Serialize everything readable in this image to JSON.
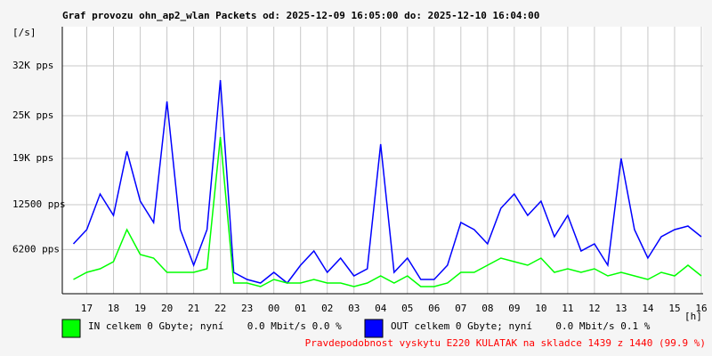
{
  "chart_data": {
    "type": "line",
    "title": "Graf provozu ohn_ap2_wlan Packets od: 2025-12-09 16:05:00 do: 2025-12-10 16:04:00",
    "y_unit": "[/s]",
    "x_unit": "[h]",
    "xlim": [
      0.083,
      24.067
    ],
    "xticks": [
      {
        "value": 1,
        "label": "17"
      },
      {
        "value": 2,
        "label": "18"
      },
      {
        "value": 3,
        "label": "19"
      },
      {
        "value": 4,
        "label": "20"
      },
      {
        "value": 5,
        "label": "21"
      },
      {
        "value": 6,
        "label": "22"
      },
      {
        "value": 7,
        "label": "23"
      },
      {
        "value": 8,
        "label": "00"
      },
      {
        "value": 9,
        "label": "01"
      },
      {
        "value": 10,
        "label": "02"
      },
      {
        "value": 11,
        "label": "03"
      },
      {
        "value": 12,
        "label": "04"
      },
      {
        "value": 13,
        "label": "05"
      },
      {
        "value": 14,
        "label": "06"
      },
      {
        "value": 15,
        "label": "07"
      },
      {
        "value": 16,
        "label": "08"
      },
      {
        "value": 17,
        "label": "09"
      },
      {
        "value": 18,
        "label": "10"
      },
      {
        "value": 19,
        "label": "11"
      },
      {
        "value": 20,
        "label": "12"
      },
      {
        "value": 21,
        "label": "13"
      },
      {
        "value": 22,
        "label": "14"
      },
      {
        "value": 23,
        "label": "15"
      },
      {
        "value": 24,
        "label": "16"
      }
    ],
    "ylim": [
      0,
      37500
    ],
    "yticks": [
      {
        "value": 6200,
        "label": "6200 pps"
      },
      {
        "value": 12500,
        "label": "12500 pps"
      },
      {
        "value": 19000,
        "label": "19K pps"
      },
      {
        "value": 25000,
        "label": "25K pps"
      },
      {
        "value": 32000,
        "label": "32K pps"
      }
    ],
    "grid": true,
    "x": [
      0.5,
      1,
      1.5,
      2,
      2.5,
      3,
      3.5,
      4,
      4.5,
      5,
      5.5,
      6,
      6.5,
      7,
      7.5,
      8,
      8.5,
      9,
      9.5,
      10,
      10.5,
      11,
      11.5,
      12,
      12.5,
      13,
      13.5,
      14,
      14.5,
      15,
      15.5,
      16,
      16.5,
      17,
      17.5,
      18,
      18.5,
      19,
      19.5,
      20,
      20.5,
      21,
      21.5,
      22,
      22.5,
      23,
      23.5,
      24
    ],
    "series": [
      {
        "name": "OUT celkem 0 Gbyte; nyní    0.0 Mbit/s 0.1 %",
        "color": "#0000ff",
        "values": [
          7000,
          9000,
          14000,
          11000,
          20000,
          13000,
          10000,
          27000,
          9000,
          4000,
          9000,
          30000,
          3000,
          2000,
          1500,
          3000,
          1500,
          4000,
          6000,
          3000,
          5000,
          2500,
          3500,
          21000,
          3000,
          5000,
          2000,
          2000,
          4000,
          10000,
          9000,
          7000,
          12000,
          14000,
          11000,
          13000,
          8000,
          11000,
          6000,
          7000,
          4000,
          19000,
          9000,
          5000,
          8000,
          9000,
          9500,
          8000
        ]
      },
      {
        "name": "IN celkem 0 Gbyte; nyní    0.0 Mbit/s 0.0 %",
        "color": "#00ff00",
        "values": [
          2000,
          3000,
          3500,
          4500,
          9000,
          5500,
          5000,
          3000,
          3000,
          3000,
          3500,
          22000,
          1500,
          1500,
          1000,
          2000,
          1500,
          1500,
          2000,
          1500,
          1500,
          1000,
          1500,
          2500,
          1500,
          2500,
          1000,
          1000,
          1500,
          3000,
          3000,
          4000,
          5000,
          4500,
          4000,
          5000,
          3000,
          3500,
          3000,
          3500,
          2500,
          3000,
          2500,
          2000,
          3000,
          2500,
          4000,
          2500
        ]
      }
    ],
    "footnote": "Pravdepodobnost vyskytu E220 KULATAK na skladce 1439 z 1440 (99.9 %)"
  }
}
